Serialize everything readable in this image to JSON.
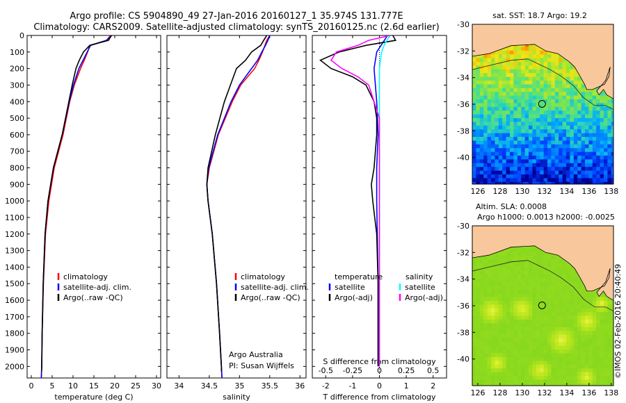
{
  "titles": {
    "line1": "Argo profile: CS 5904890_49 27-Jan-2016 20160127_1 35.974S 131.777E",
    "line2": "Climatology: CARS2009. Satellite-adjusted climatology: synTS_20160125.nc (2.6d earlier)"
  },
  "map1": {
    "title": "sat. SST: 18.7 Argo: 19.2"
  },
  "map2": {
    "title1": "Altim. SLA: 0.0008",
    "title2": "Argo h1000: 0.0013 h2000: -0.0025"
  },
  "credit": "©IMOS 02-Feb-2016 20:40:49",
  "annotations": {
    "argo": "Argo Australia",
    "pi": "PI: Susan Wijffels"
  },
  "colors": {
    "clim": "#ff0000",
    "sat": "#0000ff",
    "argo": "#000000",
    "sat_s": "#00ffff",
    "argo_s": "#ff00ff",
    "land": "#f9c79c"
  },
  "chart_data": [
    {
      "type": "line",
      "name": "temperature",
      "xlabel": "temperature (deg C)",
      "ylabel": "",
      "xlim": [
        -1,
        31
      ],
      "ylim": [
        2070,
        0
      ],
      "xticks": [
        "0",
        "5",
        "10",
        "15",
        "20",
        "25",
        "30"
      ],
      "yticks": [
        "0",
        "100",
        "200",
        "300",
        "400",
        "500",
        "600",
        "700",
        "800",
        "900",
        "1000",
        "1100",
        "1200",
        "1300",
        "1400",
        "1500",
        "1600",
        "1700",
        "1800",
        "1900",
        "2000"
      ],
      "legend": [
        "climatology",
        "satellite-adj. clim.",
        "Argo(..raw -QC)"
      ],
      "series": [
        {
          "name": "climatology",
          "color": "#ff0000",
          "depth": [
            0,
            30,
            60,
            100,
            150,
            200,
            300,
            400,
            600,
            800,
            1000,
            1200,
            1500,
            1800,
            2000,
            2070
          ],
          "values": [
            19,
            18,
            14,
            13.5,
            12.7,
            11.8,
            10.3,
            9.2,
            7.6,
            5.5,
            4.2,
            3.4,
            2.9,
            2.6,
            2.5,
            2.4
          ]
        },
        {
          "name": "satellite-adj. clim.",
          "color": "#0000ff",
          "depth": [
            0,
            30,
            60,
            100,
            150,
            200,
            300,
            400,
            600,
            800,
            1000,
            1200,
            1500,
            1800,
            2000,
            2070
          ],
          "values": [
            19.3,
            18,
            14.2,
            13.4,
            12.4,
            11.4,
            10.1,
            9.1,
            7.4,
            5.3,
            4,
            3.3,
            2.85,
            2.6,
            2.5,
            2.4
          ]
        },
        {
          "name": "Argo(..raw -QC)",
          "color": "#000000",
          "depth": [
            0,
            30,
            60,
            100,
            150,
            200,
            300,
            400,
            600,
            800,
            1000,
            1200,
            1500,
            1800,
            2000,
            2030
          ],
          "values": [
            19.2,
            18.5,
            14,
            12.5,
            11.5,
            10.7,
            9.8,
            9,
            7.4,
            5.3,
            4,
            3.3,
            2.85,
            2.6,
            2.5,
            2.45
          ]
        }
      ]
    },
    {
      "type": "line",
      "name": "salinity",
      "xlabel": "salinity",
      "ylabel": "",
      "xlim": [
        33.8,
        36.1
      ],
      "ylim": [
        2070,
        0
      ],
      "xticks": [
        "34",
        "34.5",
        "35",
        "35.5",
        "36"
      ],
      "legend": [
        "climatology",
        "satellite-adj. clim.",
        "Argo(..raw -QC)"
      ],
      "series": [
        {
          "name": "climatology",
          "color": "#ff0000",
          "depth": [
            0,
            30,
            60,
            100,
            150,
            200,
            300,
            400,
            600,
            800,
            900,
            1000,
            1200,
            1500,
            1800,
            2000,
            2070
          ],
          "values": [
            35.5,
            35.45,
            35.42,
            35.38,
            35.32,
            35.25,
            35.02,
            34.88,
            34.65,
            34.5,
            34.46,
            34.48,
            34.55,
            34.62,
            34.67,
            34.7,
            34.71
          ]
        },
        {
          "name": "satellite-adj. clim.",
          "color": "#0000ff",
          "depth": [
            0,
            30,
            60,
            100,
            150,
            200,
            300,
            400,
            600,
            800,
            900,
            1000,
            1200,
            1500,
            1800,
            2000,
            2070
          ],
          "values": [
            35.5,
            35.47,
            35.43,
            35.37,
            35.3,
            35.2,
            35,
            34.86,
            34.64,
            34.49,
            34.46,
            34.48,
            34.55,
            34.62,
            34.67,
            34.7,
            34.71
          ]
        },
        {
          "name": "Argo(..raw -QC)",
          "color": "#000000",
          "depth": [
            0,
            30,
            60,
            100,
            150,
            200,
            300,
            400,
            600,
            800,
            900,
            1000,
            1200,
            1500,
            1800,
            2000,
            2030
          ],
          "values": [
            35.45,
            35.4,
            35.35,
            35.2,
            35.1,
            34.95,
            34.85,
            34.75,
            34.6,
            34.48,
            34.46,
            34.48,
            34.55,
            34.62,
            34.67,
            34.7,
            34.7
          ]
        }
      ]
    },
    {
      "type": "line",
      "name": "difference",
      "xlabel": "T difference from climatology",
      "xlabel2": "S difference from climatology",
      "xlim": [
        -2.5,
        2.5
      ],
      "ylim": [
        2070,
        0
      ],
      "xticks": [
        "-2",
        "-1",
        "0",
        "1",
        "2"
      ],
      "xticks2": [
        "-0.5",
        "-0.25",
        "0",
        "0.25",
        "0.5"
      ],
      "legend_t_title": "temperature",
      "legend_s_title": "salinity",
      "legend": [
        "satellite",
        "Argo(-adj)",
        "satellite",
        "Argo(-adj)"
      ],
      "series": [
        {
          "name": "temperature satellite",
          "color": "#0000ff",
          "depth": [
            0,
            50,
            100,
            200,
            400,
            600,
            800,
            1000,
            1500,
            2000
          ],
          "values": [
            0.3,
            0.1,
            -0.1,
            -0.2,
            -0.1,
            -0.05,
            -0.1,
            -0.1,
            -0.05,
            -0.05
          ]
        },
        {
          "name": "temperature Argo(-adj)",
          "color": "#000000",
          "depth": [
            0,
            30,
            60,
            100,
            150,
            200,
            250,
            300,
            400,
            500,
            600,
            800,
            900,
            1000,
            1200,
            1500,
            2000
          ],
          "values": [
            0.5,
            0.6,
            -0.5,
            -1.5,
            -2.2,
            -1.8,
            -1,
            -0.5,
            -0.2,
            -0.1,
            -0.1,
            -0.2,
            -0.3,
            -0.25,
            -0.1,
            -0.05,
            -0.05
          ]
        },
        {
          "name": "salinity satellite",
          "color": "#00ffff",
          "depth": [
            0,
            50,
            100,
            200,
            400,
            600,
            800,
            1000,
            1500,
            2000
          ],
          "values": [
            0.1,
            0.05,
            0.02,
            0,
            0,
            0,
            0,
            0,
            0,
            0
          ]
        },
        {
          "name": "salinity Argo(-adj)",
          "color": "#ff00ff",
          "depth": [
            0,
            30,
            60,
            100,
            150,
            200,
            250,
            300,
            400,
            500,
            700,
            1000,
            1500,
            2000
          ],
          "values": [
            0.1,
            -0.1,
            -0.2,
            -0.4,
            -0.45,
            -0.35,
            -0.2,
            -0.1,
            -0.05,
            0,
            0,
            0,
            0,
            0
          ]
        }
      ]
    },
    {
      "type": "heatmap",
      "name": "sst-map",
      "title": "sat. SST: 18.7 Argo: 19.2",
      "xlim": [
        125.5,
        138.2
      ],
      "ylim": [
        -42,
        -30
      ],
      "xticks": [
        "126",
        "128",
        "130",
        "132",
        "134",
        "136",
        "138"
      ],
      "yticks": [
        "-30",
        "-32",
        "-34",
        "-36",
        "-38",
        "-40"
      ],
      "argo_position": {
        "lon": 131.777,
        "lat": -35.974
      }
    },
    {
      "type": "heatmap",
      "name": "sla-map",
      "title": "Altim. SLA: 0.0008",
      "xlim": [
        125.5,
        138.2
      ],
      "ylim": [
        -42,
        -30
      ],
      "xticks": [
        "126",
        "128",
        "130",
        "132",
        "134",
        "136",
        "138"
      ],
      "yticks": [
        "-30",
        "-32",
        "-34",
        "-36",
        "-38",
        "-40"
      ],
      "argo_position": {
        "lon": 131.777,
        "lat": -35.974
      }
    }
  ]
}
